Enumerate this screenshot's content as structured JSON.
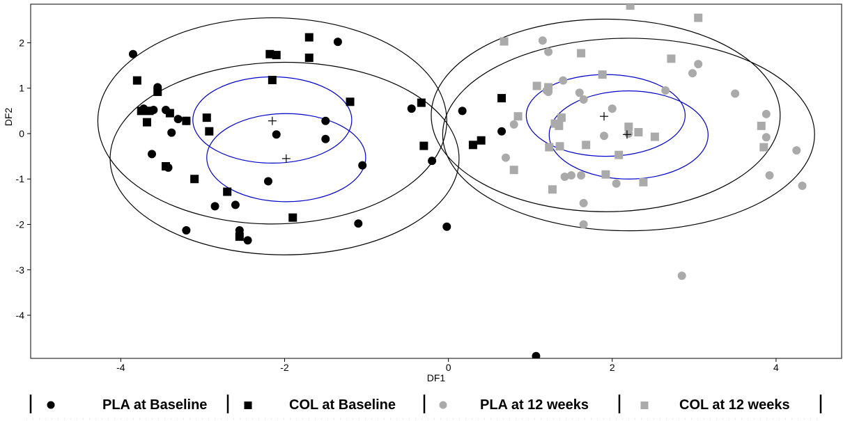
{
  "chart_data": {
    "type": "scatter",
    "title": "",
    "xlabel": "DF1",
    "ylabel": "DF2",
    "xlim": [
      -5.1,
      4.8
    ],
    "ylim": [
      -4.95,
      2.85
    ],
    "x_ticks": [
      -4,
      -2,
      0,
      2,
      4
    ],
    "y_ticks": [
      -4,
      -3,
      -2,
      -1,
      0,
      1,
      2
    ],
    "x_tick_labels": [
      "-4",
      "-2",
      "0",
      "2",
      "4"
    ],
    "y_tick_labels": [
      "-4",
      "-3",
      "-2",
      "-1",
      "0",
      "1",
      "2"
    ],
    "grid": false,
    "legend_position": "bottom",
    "series": [
      {
        "name": "PLA at Baseline",
        "marker": "circle",
        "color": "#000000",
        "points": [
          [
            -3.85,
            1.75
          ],
          [
            -1.35,
            2.02
          ],
          [
            -3.55,
            1.02
          ],
          [
            -3.72,
            0.55
          ],
          [
            -3.6,
            0.52
          ],
          [
            -3.45,
            0.52
          ],
          [
            -3.3,
            0.32
          ],
          [
            -3.2,
            0.28
          ],
          [
            -3.38,
            0.02
          ],
          [
            -2.1,
            -0.02
          ],
          [
            -1.5,
            0.28
          ],
          [
            -1.5,
            -0.12
          ],
          [
            -3.62,
            -0.45
          ],
          [
            -3.42,
            -0.75
          ],
          [
            -1.05,
            -0.7
          ],
          [
            -2.2,
            -1.05
          ],
          [
            -2.85,
            -1.6
          ],
          [
            -2.6,
            -1.57
          ],
          [
            -3.2,
            -2.13
          ],
          [
            -2.55,
            -2.13
          ],
          [
            -2.45,
            -2.35
          ],
          [
            -1.1,
            -1.98
          ],
          [
            -0.45,
            0.55
          ],
          [
            0.17,
            0.5
          ],
          [
            -0.2,
            -0.6
          ],
          [
            0.65,
            0.05
          ],
          [
            -0.02,
            -2.05
          ],
          [
            1.07,
            -4.9
          ]
        ]
      },
      {
        "name": "COL at Baseline",
        "marker": "square",
        "color": "#000000",
        "points": [
          [
            -3.8,
            1.17
          ],
          [
            -3.55,
            0.92
          ],
          [
            -3.75,
            0.5
          ],
          [
            -3.65,
            0.5
          ],
          [
            -3.68,
            0.25
          ],
          [
            -3.4,
            0.45
          ],
          [
            -3.2,
            0.28
          ],
          [
            -2.95,
            0.35
          ],
          [
            -2.92,
            0.05
          ],
          [
            -3.45,
            -0.72
          ],
          [
            -3.1,
            -1.0
          ],
          [
            -2.7,
            -1.28
          ],
          [
            -2.55,
            -2.27
          ],
          [
            -1.9,
            -1.85
          ],
          [
            -2.18,
            1.75
          ],
          [
            -2.1,
            1.73
          ],
          [
            -1.7,
            2.12
          ],
          [
            -1.7,
            1.67
          ],
          [
            -2.15,
            1.18
          ],
          [
            -1.2,
            0.7
          ],
          [
            -0.33,
            0.68
          ],
          [
            -0.3,
            -0.27
          ],
          [
            0.3,
            -0.25
          ],
          [
            0.4,
            -0.15
          ],
          [
            0.65,
            0.78
          ]
        ]
      },
      {
        "name": "PLA at 12 weeks",
        "marker": "circle",
        "color": "#aaaaaa",
        "points": [
          [
            1.15,
            2.05
          ],
          [
            1.22,
            1.8
          ],
          [
            1.2,
            0.95
          ],
          [
            1.4,
            1.17
          ],
          [
            1.22,
            0.92
          ],
          [
            1.6,
            0.9
          ],
          [
            1.65,
            0.75
          ],
          [
            0.7,
            -0.53
          ],
          [
            0.8,
            0.2
          ],
          [
            1.42,
            -0.95
          ],
          [
            1.5,
            -0.92
          ],
          [
            1.62,
            -0.92
          ],
          [
            1.65,
            -1.53
          ],
          [
            1.65,
            -2.0
          ],
          [
            1.9,
            -0.05
          ],
          [
            2.0,
            0.55
          ],
          [
            2.05,
            -1.1
          ],
          [
            2.2,
            0.0
          ],
          [
            2.65,
            0.95
          ],
          [
            2.85,
            -3.13
          ],
          [
            2.98,
            1.33
          ],
          [
            3.05,
            1.53
          ],
          [
            3.5,
            0.88
          ],
          [
            3.88,
            0.43
          ],
          [
            3.88,
            -0.08
          ],
          [
            3.92,
            -0.92
          ],
          [
            4.25,
            -0.37
          ],
          [
            4.32,
            -1.15
          ]
        ]
      },
      {
        "name": "COL at 12 weeks",
        "marker": "square",
        "color": "#aaaaaa",
        "points": [
          [
            0.68,
            2.03
          ],
          [
            2.22,
            2.82
          ],
          [
            3.05,
            2.55
          ],
          [
            1.62,
            1.77
          ],
          [
            2.72,
            1.65
          ],
          [
            1.88,
            1.3
          ],
          [
            1.08,
            1.05
          ],
          [
            1.22,
            1.02
          ],
          [
            0.85,
            0.38
          ],
          [
            1.38,
            0.35
          ],
          [
            1.3,
            0.22
          ],
          [
            1.35,
            0.17
          ],
          [
            1.23,
            -0.3
          ],
          [
            1.36,
            -0.28
          ],
          [
            1.68,
            -0.25
          ],
          [
            0.8,
            -0.8
          ],
          [
            1.27,
            -1.23
          ],
          [
            1.92,
            -0.9
          ],
          [
            2.08,
            -0.47
          ],
          [
            2.38,
            -1.07
          ],
          [
            2.52,
            -0.07
          ],
          [
            2.2,
            0.15
          ],
          [
            2.32,
            0.03
          ],
          [
            3.82,
            0.17
          ],
          [
            3.85,
            -0.3
          ]
        ]
      }
    ],
    "centroids": [
      [
        -2.15,
        0.28
      ],
      [
        -1.98,
        -0.55
      ],
      [
        1.9,
        0.38
      ],
      [
        2.18,
        -0.02
      ]
    ],
    "ellipses": [
      {
        "cx": -2.15,
        "cy": 0.28,
        "rx": 2.13,
        "ry": 2.27,
        "color": "#000000"
      },
      {
        "cx": -2.0,
        "cy": -0.55,
        "rx": 2.13,
        "ry": 2.12,
        "color": "#000000"
      },
      {
        "cx": 1.92,
        "cy": 0.4,
        "rx": 2.13,
        "ry": 2.12,
        "color": "#000000"
      },
      {
        "cx": 2.2,
        "cy": -0.02,
        "rx": 2.27,
        "ry": 2.12,
        "color": "#000000"
      },
      {
        "cx": -2.15,
        "cy": 0.3,
        "rx": 0.97,
        "ry": 0.95,
        "color": "#0000cc"
      },
      {
        "cx": -1.98,
        "cy": -0.53,
        "rx": 0.97,
        "ry": 0.97,
        "color": "#0000cc"
      },
      {
        "cx": 1.92,
        "cy": 0.4,
        "rx": 0.97,
        "ry": 0.9,
        "color": "#0000cc"
      },
      {
        "cx": 2.2,
        "cy": -0.03,
        "rx": 0.97,
        "ry": 0.97,
        "color": "#0000cc"
      }
    ]
  },
  "legend": {
    "items": [
      {
        "label": "PLA at Baseline",
        "marker": "circle",
        "color": "#000000"
      },
      {
        "label": "COL at Baseline",
        "marker": "square",
        "color": "#000000"
      },
      {
        "label": "PLA at 12 weeks",
        "marker": "circle",
        "color": "#aaaaaa"
      },
      {
        "label": "COL at 12 weeks",
        "marker": "square",
        "color": "#aaaaaa"
      }
    ]
  }
}
